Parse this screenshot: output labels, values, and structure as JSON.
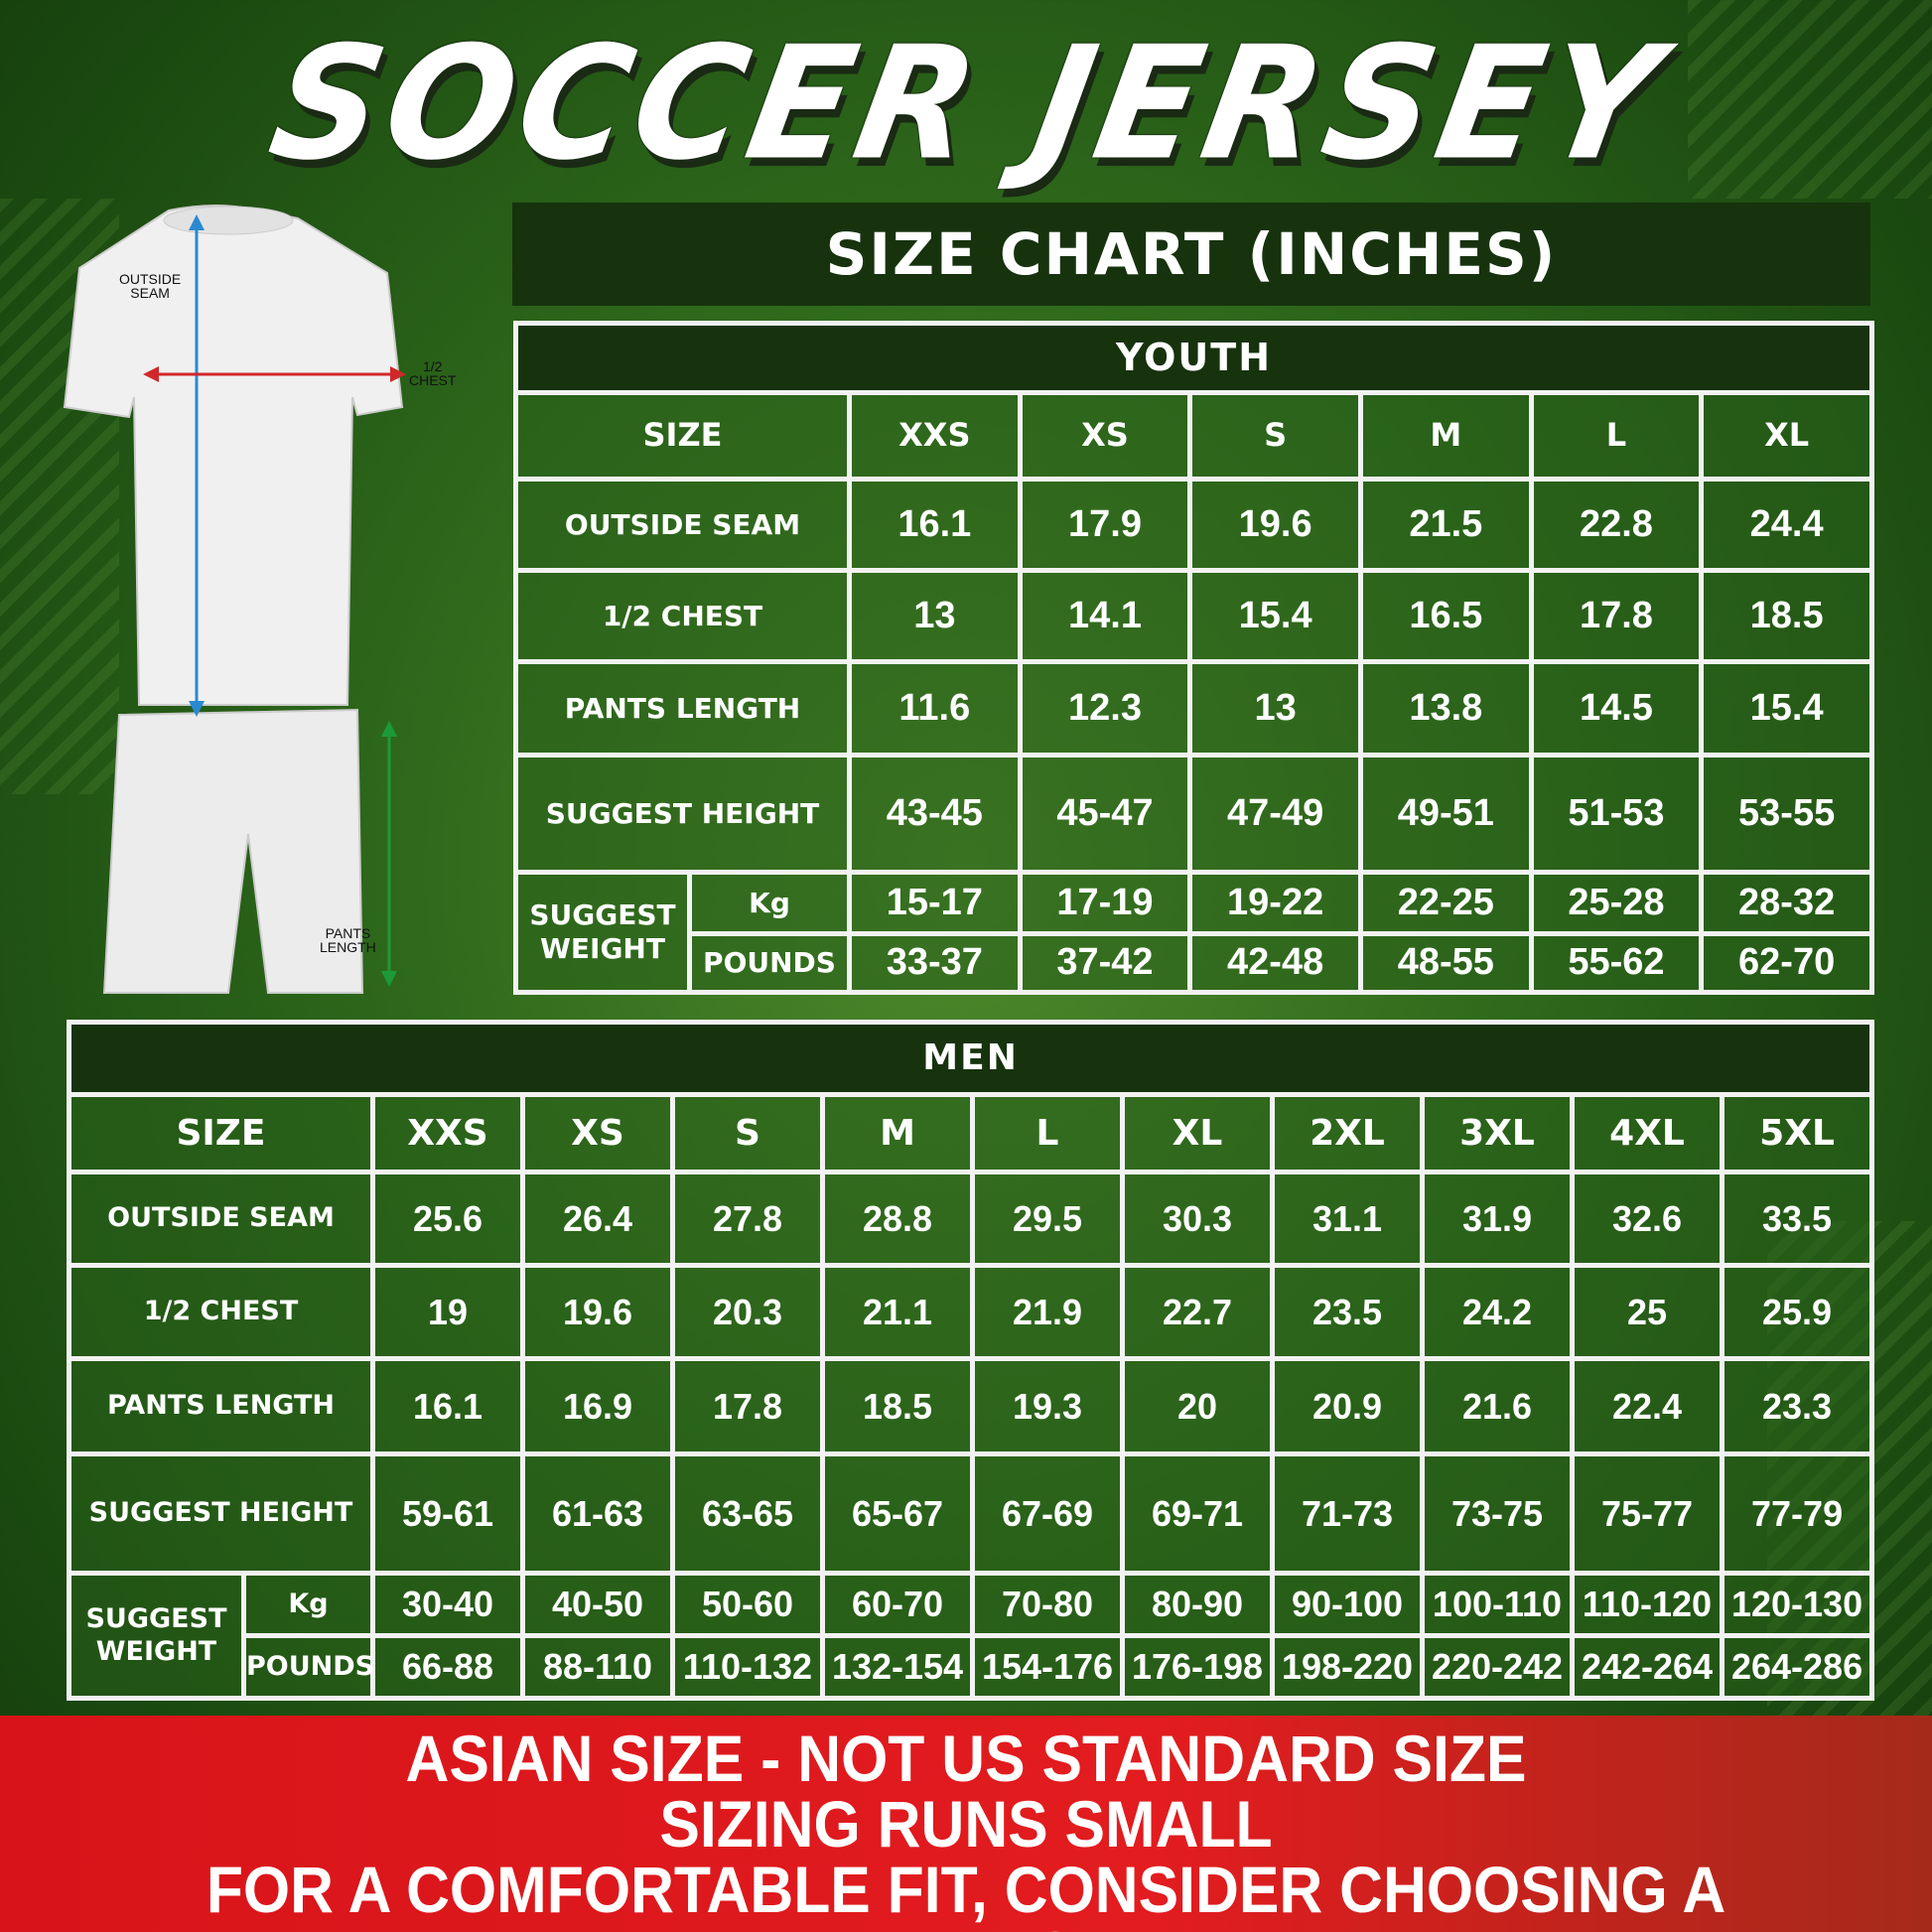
{
  "title": "SOCCER JERSEY",
  "chart_title": "SIZE CHART (INCHES)",
  "figure": {
    "outside_seam": "OUTSIDE\nSEAM",
    "half_chest": "1/2\nCHEST",
    "pants_length": "PANTS\nLENGTH",
    "colors": {
      "outside_seam_arrow": "#2a8ad0",
      "chest_arrow": "#d0282a",
      "pants_arrow": "#1c9a3a"
    }
  },
  "youth": {
    "title": "YOUTH",
    "size_label": "SIZE",
    "sizes": [
      "XXS",
      "XS",
      "S",
      "M",
      "L",
      "XL"
    ],
    "rows": [
      {
        "label": "OUTSIDE SEAM",
        "values": [
          "16.1",
          "17.9",
          "19.6",
          "21.5",
          "22.8",
          "24.4"
        ]
      },
      {
        "label": "1/2 CHEST",
        "values": [
          "13",
          "14.1",
          "15.4",
          "16.5",
          "17.8",
          "18.5"
        ]
      },
      {
        "label": "PANTS LENGTH",
        "values": [
          "11.6",
          "12.3",
          "13",
          "13.8",
          "14.5",
          "15.4"
        ]
      },
      {
        "label": "SUGGEST HEIGHT",
        "values": [
          "43-45",
          "45-47",
          "47-49",
          "49-51",
          "51-53",
          "53-55"
        ]
      }
    ],
    "weight_label": "SUGGEST WEIGHT",
    "kg_label": "Kg",
    "kg": [
      "15-17",
      "17-19",
      "19-22",
      "22-25",
      "25-28",
      "28-32"
    ],
    "pounds_label": "POUNDS",
    "pounds": [
      "33-37",
      "37-42",
      "42-48",
      "48-55",
      "55-62",
      "62-70"
    ]
  },
  "men": {
    "title": "MEN",
    "size_label": "SIZE",
    "sizes": [
      "XXS",
      "XS",
      "S",
      "M",
      "L",
      "XL",
      "2XL",
      "3XL",
      "4XL",
      "5XL"
    ],
    "rows": [
      {
        "label": "OUTSIDE SEAM",
        "values": [
          "25.6",
          "26.4",
          "27.8",
          "28.8",
          "29.5",
          "30.3",
          "31.1",
          "31.9",
          "32.6",
          "33.5"
        ]
      },
      {
        "label": "1/2 CHEST",
        "values": [
          "19",
          "19.6",
          "20.3",
          "21.1",
          "21.9",
          "22.7",
          "23.5",
          "24.2",
          "25",
          "25.9"
        ]
      },
      {
        "label": "PANTS LENGTH",
        "values": [
          "16.1",
          "16.9",
          "17.8",
          "18.5",
          "19.3",
          "20",
          "20.9",
          "21.6",
          "22.4",
          "23.3"
        ]
      },
      {
        "label": "SUGGEST HEIGHT",
        "values": [
          "59-61",
          "61-63",
          "63-65",
          "65-67",
          "67-69",
          "69-71",
          "71-73",
          "73-75",
          "75-77",
          "77-79"
        ]
      }
    ],
    "weight_label": "SUGGEST WEIGHT",
    "kg_label": "Kg",
    "kg": [
      "30-40",
      "40-50",
      "50-60",
      "60-70",
      "70-80",
      "80-90",
      "90-100",
      "100-110",
      "110-120",
      "120-130"
    ],
    "pounds_label": "POUNDS",
    "pounds": [
      "66-88",
      "88-110",
      "110-132",
      "132-154",
      "154-176",
      "176-198",
      "198-220",
      "220-242",
      "242-264",
      "264-286"
    ]
  },
  "banner": {
    "line1": "ASIAN SIZE - NOT US STANDARD SIZE",
    "line2": "SIZING RUNS SMALL",
    "line3": "FOR A COMFORTABLE FIT, CONSIDER CHOOSING A LARGER SIZE",
    "color": "#e21c1f"
  }
}
